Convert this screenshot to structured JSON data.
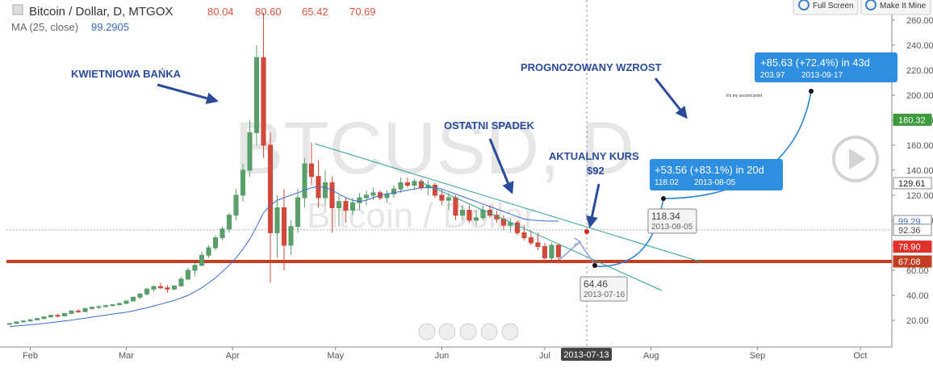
{
  "chart_data": {
    "type": "candlestick",
    "title": "Bitcoin / Dollar, D, MTGOX",
    "ohlc_readout": [
      "80.04",
      "80.60",
      "65.42",
      "70.69"
    ],
    "watermark": "BTCUSD, D",
    "watermark_subtitle": "Bitcoin / Dollar",
    "categories": [
      null,
      null,
      null,
      null,
      null,
      null,
      null,
      null,
      null,
      null,
      null,
      null,
      null,
      null,
      null,
      null,
      null,
      null,
      null,
      null,
      null,
      null,
      null,
      null,
      null,
      null,
      null,
      null,
      null,
      null,
      null,
      null,
      null,
      null,
      null,
      null,
      null,
      null,
      null,
      null,
      null,
      null,
      null,
      null,
      null,
      null,
      null,
      null,
      null,
      null,
      null,
      null,
      null,
      null,
      null,
      null,
      null,
      null,
      null,
      null,
      null,
      null,
      null,
      null,
      null,
      null,
      null,
      null,
      null,
      null,
      null,
      null,
      null,
      null,
      null,
      null,
      null,
      null,
      null,
      null,
      null
    ],
    "open": [
      17,
      17.5,
      18.8,
      19.5,
      20.4,
      21.5,
      22.8,
      24,
      23.5,
      25.5,
      27.5,
      27,
      29.5,
      30.5,
      31,
      31.8,
      32.5,
      33.5,
      35.5,
      38.5,
      41,
      45,
      47,
      46,
      45,
      47.5,
      53,
      60,
      64,
      72,
      78,
      86,
      93,
      104,
      120,
      140,
      170,
      230,
      160,
      90,
      110,
      80,
      95,
      118,
      145,
      135,
      118,
      130,
      110,
      115,
      108,
      114,
      118,
      120,
      122,
      118,
      121,
      125,
      130,
      128,
      131,
      126,
      128,
      120,
      116,
      118,
      104,
      108,
      100,
      102,
      108,
      104,
      101,
      96,
      98,
      90,
      86,
      82,
      79,
      70,
      80.04
    ],
    "high": [
      18,
      19,
      20,
      21,
      22,
      23,
      24.5,
      25,
      26,
      28,
      29,
      30,
      31,
      32,
      32.5,
      33,
      34,
      36,
      39,
      42,
      46,
      48,
      50,
      48,
      48,
      55,
      62,
      66,
      75,
      80,
      88,
      95,
      106,
      125,
      145,
      180,
      240,
      266,
      170,
      120,
      125,
      100,
      125,
      150,
      162,
      148,
      140,
      135,
      120,
      118,
      118,
      122,
      124,
      126,
      124,
      124,
      128,
      134,
      134,
      133,
      133,
      132,
      130,
      125,
      122,
      120,
      112,
      112,
      108,
      112,
      112,
      108,
      104,
      101,
      100,
      96,
      92,
      90,
      82,
      82,
      80.6
    ],
    "low": [
      16.5,
      17,
      18,
      19,
      20,
      21,
      22,
      22.5,
      23,
      25,
      26,
      26.5,
      28.5,
      29,
      30,
      31,
      32,
      33,
      35,
      37,
      40,
      43,
      45,
      42,
      44,
      47,
      52,
      55,
      63,
      70,
      76,
      84,
      90,
      100,
      115,
      135,
      160,
      150,
      50,
      70,
      60,
      72,
      90,
      110,
      128,
      110,
      112,
      90,
      95,
      98,
      104,
      108,
      112,
      116,
      116,
      114,
      118,
      122,
      126,
      124,
      124,
      120,
      118,
      112,
      108,
      100,
      100,
      98,
      96,
      100,
      102,
      98,
      92,
      90,
      88,
      84,
      80,
      76,
      66,
      68,
      65.42
    ],
    "close": [
      17.5,
      18.8,
      19.5,
      20.4,
      21.5,
      22.8,
      24,
      23.5,
      25.5,
      27.5,
      27,
      29.5,
      30.5,
      31,
      31.8,
      32.5,
      33.5,
      35.5,
      38.5,
      41,
      45,
      47,
      46,
      45,
      47.5,
      53,
      60,
      64,
      72,
      78,
      86,
      93,
      104,
      120,
      140,
      170,
      230,
      160,
      90,
      110,
      80,
      95,
      118,
      145,
      135,
      118,
      130,
      110,
      115,
      108,
      114,
      118,
      120,
      122,
      118,
      121,
      125,
      130,
      128,
      131,
      126,
      128,
      120,
      116,
      118,
      104,
      108,
      100,
      102,
      108,
      104,
      101,
      96,
      98,
      90,
      86,
      82,
      79,
      70,
      80,
      70.69
    ],
    "up_color": "#5a9e6a",
    "down_color": "#d0493a",
    "ma": {
      "name": "MA (25, close)",
      "color": "#3a6bd0",
      "values": [
        15,
        15.5,
        16,
        16.5,
        17,
        17.6,
        18.2,
        18.8,
        19.5,
        20.2,
        21,
        21.8,
        22.6,
        23.4,
        24.2,
        25,
        25.8,
        26.6,
        27.6,
        28.8,
        30,
        31.5,
        33,
        34.5,
        36,
        38,
        40,
        43,
        46,
        50,
        54,
        59,
        64,
        70,
        77,
        85,
        95,
        106,
        112,
        116,
        118,
        120,
        122,
        124,
        126,
        127,
        126,
        124,
        121,
        118,
        116,
        115,
        116,
        118,
        120,
        121,
        122,
        123,
        124,
        125,
        126,
        126,
        126,
        125,
        123,
        121,
        119,
        117,
        115,
        113,
        111,
        109,
        107,
        105,
        103,
        101,
        100.2,
        99.8,
        99.5,
        99.3,
        99.2905
      ]
    },
    "xlim": [
      -0.47,
      128.6
    ],
    "xticks": [
      {
        "value": 3,
        "label": "Feb"
      },
      {
        "value": 17,
        "label": "Mar"
      },
      {
        "value": 32.5,
        "label": "Apr"
      },
      {
        "value": 47.5,
        "label": "May"
      },
      {
        "value": 63,
        "label": "Jun"
      },
      {
        "value": 78,
        "label": "Jul"
      },
      {
        "value": 93.5,
        "label": "Aug"
      },
      {
        "value": 109,
        "label": "Sep"
      },
      {
        "value": 124,
        "label": "Oct"
      }
    ],
    "ylim": [
      -1.3,
      276
    ],
    "yticks": [
      {
        "value": 20,
        "label": "20.00"
      },
      {
        "value": 40,
        "label": "40.00"
      },
      {
        "value": 60,
        "label": "60.00"
      },
      {
        "value": 80,
        "label": "80.00"
      },
      {
        "value": 100,
        "label": "100.00"
      },
      {
        "value": 120,
        "label": "120.00"
      },
      {
        "value": 140,
        "label": "140.00"
      },
      {
        "value": 160,
        "label": "160.00"
      },
      {
        "value": 180,
        "label": "180.00"
      },
      {
        "value": 200,
        "label": "200.00"
      },
      {
        "value": 220,
        "label": "220.00"
      },
      {
        "value": 240,
        "label": "240.00"
      },
      {
        "value": 260,
        "label": "260.00"
      }
    ],
    "grid": false,
    "price_tags": [
      {
        "value": 180.32,
        "label": "180.32",
        "color": "#3c9a3c",
        "text_color": "#ffffff"
      },
      {
        "value": 129.61,
        "label": "129.61",
        "color": "#ffffff",
        "text_color": "#222222"
      },
      {
        "value": 99.29,
        "label": "99.29",
        "color": "#ffffff",
        "text_color": "#3a6bd0"
      },
      {
        "value": 92.36,
        "label": "92.36",
        "color": "#ffffff",
        "text_color": "#444444"
      },
      {
        "value": 78.9,
        "label": "78.90",
        "color": "#e0302a",
        "text_color": "#ffffff"
      },
      {
        "value": 67.08,
        "label": "67.08",
        "color": "#c43c22",
        "text_color": "#ffffff"
      }
    ],
    "crosshair_label": "2013-07-13",
    "annotations": [
      "KWIETNIOWA BAŃKA",
      "PROGNOZOWANY WZROST",
      "OSTATNI SPADEK",
      "AKTUALNY KURS",
      "$92",
      "It's my second point"
    ],
    "callouts": [
      {
        "price": "64.46",
        "date": "2013-07-16"
      },
      {
        "price": "118.34",
        "date": "2013-08-05"
      }
    ],
    "projections": [
      {
        "change": "+53.56 (+83.1%) in 20d",
        "price": "118.02",
        "date": "2013-08-05"
      },
      {
        "change": "+85.63 (+72.4%) in 43d",
        "price": "203.97",
        "date": "2013-09-17"
      }
    ]
  },
  "toolbar": {
    "full_screen": "Full Screen",
    "make_it_mine": "Make It Mine"
  }
}
